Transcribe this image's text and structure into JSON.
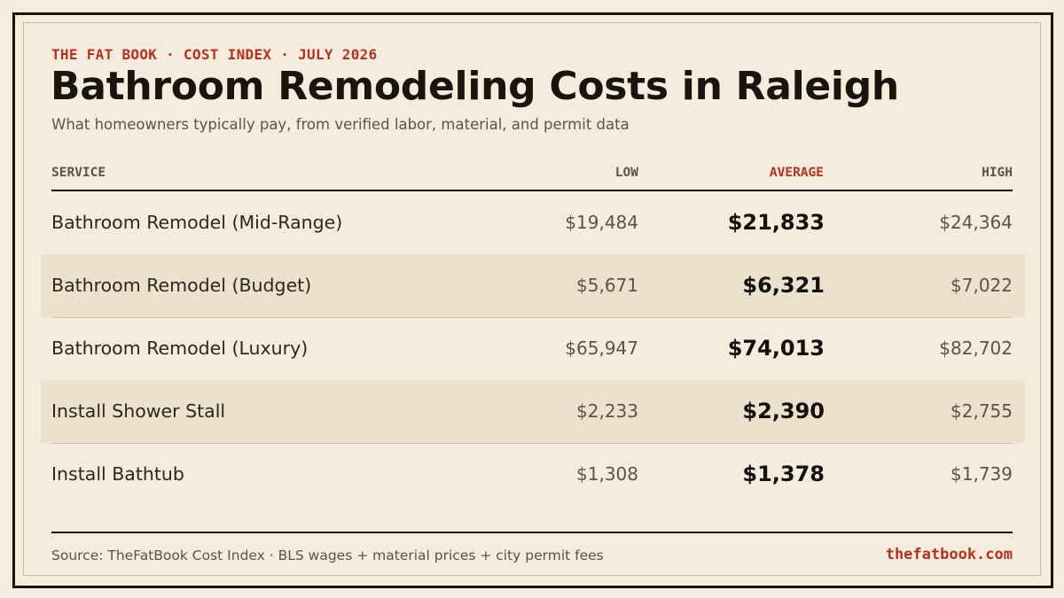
{
  "header": {
    "kicker": "THE FAT BOOK · COST INDEX · JULY 2026",
    "title": "Bathroom Remodeling Costs in Raleigh",
    "subtitle": "What homeowners typically pay, from verified labor, material, and permit data"
  },
  "table": {
    "columns": {
      "service": "SERVICE",
      "low": "LOW",
      "average": "AVERAGE",
      "high": "HIGH"
    },
    "rows": [
      {
        "service": "Bathroom Remodel (Mid-Range)",
        "low": "$19,484",
        "average": "$21,833",
        "high": "$24,364",
        "shaded": false
      },
      {
        "service": "Bathroom Remodel (Budget)",
        "low": "$5,671",
        "average": "$6,321",
        "high": "$7,022",
        "shaded": true
      },
      {
        "service": "Bathroom Remodel (Luxury)",
        "low": "$65,947",
        "average": "$74,013",
        "high": "$82,702",
        "shaded": false
      },
      {
        "service": "Install Shower Stall",
        "low": "$2,233",
        "average": "$2,390",
        "high": "$2,755",
        "shaded": true
      },
      {
        "service": "Install Bathtub",
        "low": "$1,308",
        "average": "$1,378",
        "high": "$1,739",
        "shaded": false
      }
    ]
  },
  "footer": {
    "source": "Source: TheFatBook Cost Index · BLS wages + material prices + city permit fees",
    "site": "thefatbook.com"
  },
  "colors": {
    "background": "#f5ecdd",
    "accent": "#b8311f",
    "ink": "#1a140f",
    "row_shade": "#ece1cd"
  }
}
